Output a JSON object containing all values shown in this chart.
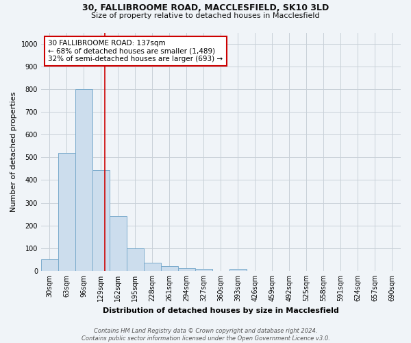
{
  "title1": "30, FALLIBROOME ROAD, MACCLESFIELD, SK10 3LD",
  "title2": "Size of property relative to detached houses in Macclesfield",
  "xlabel": "Distribution of detached houses by size in Macclesfield",
  "ylabel": "Number of detached properties",
  "footnote": "Contains HM Land Registry data © Crown copyright and database right 2024.\nContains public sector information licensed under the Open Government Licence v3.0.",
  "bar_labels": [
    "30sqm",
    "63sqm",
    "96sqm",
    "129sqm",
    "162sqm",
    "195sqm",
    "228sqm",
    "261sqm",
    "294sqm",
    "327sqm",
    "360sqm",
    "393sqm",
    "426sqm",
    "459sqm",
    "492sqm",
    "525sqm",
    "558sqm",
    "591sqm",
    "624sqm",
    "657sqm",
    "690sqm"
  ],
  "bar_values": [
    50,
    520,
    800,
    445,
    240,
    100,
    37,
    20,
    10,
    8,
    0,
    8,
    0,
    0,
    0,
    0,
    0,
    0,
    0,
    0,
    0
  ],
  "bar_color": "#ccdded",
  "bar_edge_color": "#7aabcc",
  "red_line_x": 3.242,
  "red_line_color": "#cc0000",
  "annotation_text": "30 FALLIBROOME ROAD: 137sqm\n← 68% of detached houses are smaller (1,489)\n32% of semi-detached houses are larger (693) →",
  "annotation_box_color": "#ffffff",
  "annotation_box_edge": "#cc0000",
  "ylim": [
    0,
    1050
  ],
  "yticks": [
    0,
    100,
    200,
    300,
    400,
    500,
    600,
    700,
    800,
    900,
    1000
  ],
  "bg_color": "#f0f4f8",
  "grid_color": "#c8d0d8",
  "title1_fontsize": 9,
  "title2_fontsize": 8,
  "xlabel_fontsize": 8,
  "ylabel_fontsize": 8,
  "tick_fontsize": 7,
  "annot_fontsize": 7.5,
  "footnote_fontsize": 6
}
